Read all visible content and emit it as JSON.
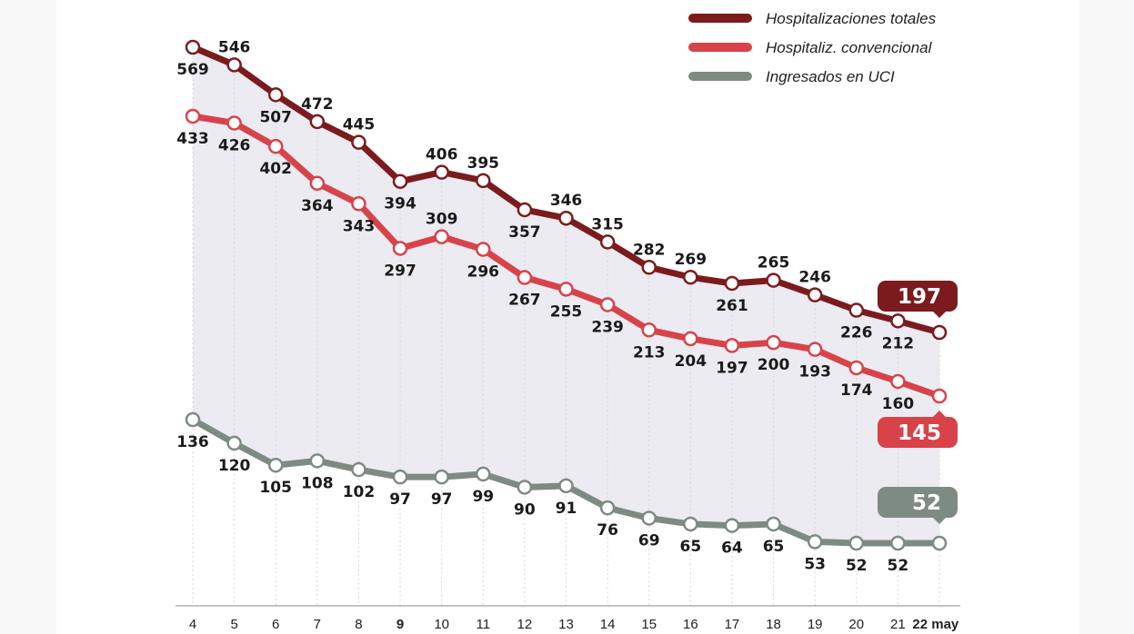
{
  "chart_data": {
    "type": "line",
    "x": [
      "4",
      "5",
      "6",
      "7",
      "8",
      "9",
      "10",
      "11",
      "12",
      "13",
      "14",
      "15",
      "16",
      "17",
      "18",
      "19",
      "20",
      "21",
      "22 may"
    ],
    "bold_ticks": [
      "9",
      "22 may"
    ],
    "series": [
      {
        "name": "Hospitalizaciones totales",
        "color": "#7b1b1e",
        "values": [
          569,
          546,
          507,
          472,
          445,
          394,
          406,
          395,
          357,
          346,
          315,
          282,
          269,
          261,
          265,
          246,
          226,
          212,
          197
        ]
      },
      {
        "name": "Hospitaliz. convencional",
        "color": "#d8434a",
        "values": [
          433,
          426,
          402,
          364,
          343,
          297,
          309,
          296,
          267,
          255,
          239,
          213,
          204,
          197,
          200,
          193,
          174,
          160,
          145
        ]
      },
      {
        "name": "Ingresados en UCI",
        "color": "#7e8b83",
        "values": [
          136,
          120,
          105,
          108,
          102,
          97,
          97,
          99,
          90,
          91,
          76,
          69,
          65,
          64,
          65,
          53,
          52,
          52,
          52
        ]
      }
    ],
    "last_value_badges": [
      "197",
      "145",
      "52"
    ],
    "fill_color": "#ebebf1",
    "legend_position": "top-right",
    "grid": false
  }
}
